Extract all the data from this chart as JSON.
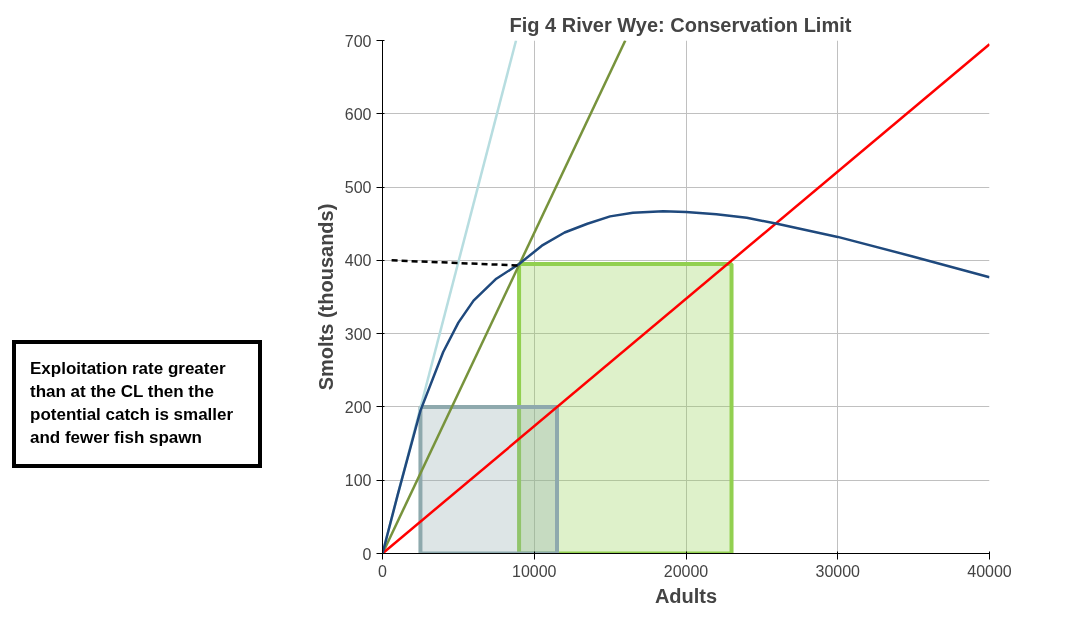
{
  "chart_data": {
    "type": "line",
    "title": "Fig  4 River  Wye: Conservation Limit",
    "xlabel": "Adults",
    "ylabel": "Smolts (thousands)",
    "xlim": [
      0,
      40000
    ],
    "ylim": [
      0,
      700
    ],
    "xticks": [
      0,
      10000,
      20000,
      30000,
      40000
    ],
    "yticks": [
      0,
      100,
      200,
      300,
      400,
      500,
      600,
      700
    ],
    "grid": true,
    "annotations": [
      "Exploitation rate greater than at the CL then the potential catch is smaller and fewer fish spawn"
    ],
    "series": [
      {
        "type": "area",
        "color": "#92d050",
        "x": [
          9000,
          23000
        ],
        "values": [
          395,
          395
        ]
      },
      {
        "type": "area",
        "color": "#8ea9ad",
        "x": [
          2500,
          11500
        ],
        "values": [
          200,
          200
        ]
      },
      {
        "color": "#b7dde0",
        "x": [
          0,
          8800
        ],
        "values": [
          0,
          700
        ]
      },
      {
        "color": "#77933c",
        "x": [
          0,
          16000
        ],
        "values": [
          0,
          700
        ]
      },
      {
        "color": "#ff0000",
        "x": [
          0,
          40000
        ],
        "values": [
          0,
          695
        ]
      },
      {
        "color": "#1f497d",
        "x": [
          0,
          1000,
          2500,
          4000,
          5000,
          6000,
          7500,
          9000,
          10500,
          12000,
          13500,
          15000,
          16500,
          18500,
          20000,
          22000,
          24000,
          26000,
          30000,
          35000,
          40000
        ],
        "values": [
          0,
          80,
          195,
          275,
          315,
          345,
          375,
          395,
          420,
          438,
          450,
          460,
          465,
          467,
          466,
          463,
          458,
          450,
          432,
          405,
          377
        ]
      },
      {
        "color": "#000000",
        "line_style": "dashed",
        "x": [
          600,
          9000
        ],
        "values": [
          400,
          393
        ]
      }
    ]
  }
}
